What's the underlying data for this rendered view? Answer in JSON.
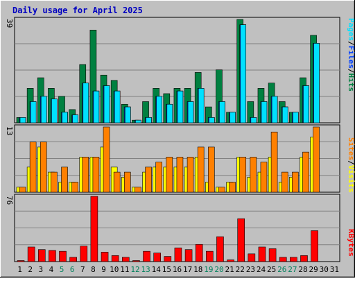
{
  "title": "Daily usage for April 2025",
  "colors": {
    "background": "#C0C0C0",
    "title": "#0000C0",
    "hits": "#008040",
    "files": "#0040FF",
    "pages": "#00E0FF",
    "visits": "#FFFF00",
    "sites": "#FF8000",
    "kbytes": "#FF0000",
    "weekend_day": "#00805C",
    "weekday": "#000000"
  },
  "legends": {
    "top": [
      "Pages",
      "/",
      "Files",
      "/",
      "Hits"
    ],
    "middle": [
      "Sites",
      "/",
      "Visits"
    ],
    "bottom": [
      "KBytes"
    ]
  },
  "chart_data": [
    {
      "type": "bar",
      "panel": "hits-files-pages",
      "ymax_label": "39",
      "ylim": [
        0,
        39
      ],
      "categories": [
        "1",
        "2",
        "3",
        "4",
        "5",
        "6",
        "7",
        "8",
        "9",
        "10",
        "11",
        "12",
        "13",
        "14",
        "15",
        "16",
        "17",
        "18",
        "19",
        "20",
        "21",
        "22",
        "23",
        "24",
        "25",
        "26",
        "27",
        "28",
        "29",
        "30",
        "31"
      ],
      "series": [
        {
          "name": "Hits",
          "values": [
            2,
            13,
            17,
            13,
            10,
            5,
            22,
            35,
            18,
            16,
            7,
            1,
            8,
            13,
            11,
            13,
            13,
            19,
            6,
            20,
            4,
            39,
            8,
            13,
            15,
            8,
            4,
            17,
            33,
            0,
            0
          ]
        },
        {
          "name": "Files",
          "values": [
            2,
            8,
            10,
            9,
            4,
            3,
            15,
            12,
            14,
            12,
            6,
            1,
            2,
            10,
            7,
            12,
            8,
            13,
            2,
            8,
            4,
            37,
            2,
            8,
            10,
            6,
            4,
            14,
            30,
            0,
            0
          ]
        },
        {
          "name": "Pages",
          "values": [
            2,
            8,
            10,
            9,
            4,
            3,
            15,
            12,
            14,
            12,
            6,
            1,
            2,
            10,
            7,
            12,
            8,
            13,
            2,
            8,
            4,
            37,
            2,
            8,
            10,
            6,
            4,
            14,
            30,
            0,
            0
          ]
        }
      ]
    },
    {
      "type": "bar",
      "panel": "visits-sites",
      "ymax_label": "13",
      "ylim": [
        0,
        13
      ],
      "categories": [
        "1",
        "2",
        "3",
        "4",
        "5",
        "6",
        "7",
        "8",
        "9",
        "10",
        "11",
        "12",
        "13",
        "14",
        "15",
        "16",
        "17",
        "18",
        "19",
        "20",
        "21",
        "22",
        "23",
        "24",
        "25",
        "26",
        "27",
        "28",
        "29",
        "30",
        "31"
      ],
      "series": [
        {
          "name": "Visits",
          "values": [
            1,
            5,
            9,
            4,
            2,
            2,
            7,
            7,
            9,
            5,
            3,
            1,
            4,
            5,
            5,
            5,
            5,
            7,
            2,
            1,
            2,
            7,
            3,
            4,
            7,
            2,
            3,
            7,
            11,
            0,
            0
          ]
        },
        {
          "name": "Sites",
          "values": [
            1,
            10,
            10,
            4,
            5,
            2,
            7,
            7,
            13,
            4,
            4,
            1,
            5,
            6,
            7,
            7,
            7,
            9,
            9,
            1,
            2,
            7,
            7,
            6,
            12,
            4,
            4,
            8,
            13,
            0,
            0
          ]
        }
      ]
    },
    {
      "type": "bar",
      "panel": "kbytes",
      "ymax_label": "76",
      "ylim": [
        0,
        76
      ],
      "categories": [
        "1",
        "2",
        "3",
        "4",
        "5",
        "6",
        "7",
        "8",
        "9",
        "10",
        "11",
        "12",
        "13",
        "14",
        "15",
        "16",
        "17",
        "18",
        "19",
        "20",
        "21",
        "22",
        "23",
        "24",
        "25",
        "26",
        "27",
        "28",
        "29",
        "30",
        "31"
      ],
      "series": [
        {
          "name": "KBytes",
          "values": [
            1,
            17,
            14,
            13,
            12,
            5,
            18,
            76,
            11,
            7,
            5,
            1,
            12,
            10,
            6,
            16,
            14,
            20,
            12,
            29,
            2,
            50,
            9,
            17,
            15,
            5,
            5,
            7,
            36,
            0,
            0
          ]
        }
      ]
    }
  ],
  "x_axis": {
    "days": [
      "1",
      "2",
      "3",
      "4",
      "5",
      "6",
      "7",
      "8",
      "9",
      "10",
      "11",
      "12",
      "13",
      "14",
      "15",
      "16",
      "17",
      "18",
      "19",
      "20",
      "21",
      "22",
      "23",
      "24",
      "25",
      "26",
      "27",
      "28",
      "29",
      "30",
      "31"
    ],
    "weekend": [
      5,
      6,
      12,
      13,
      19,
      20,
      26,
      27
    ]
  }
}
